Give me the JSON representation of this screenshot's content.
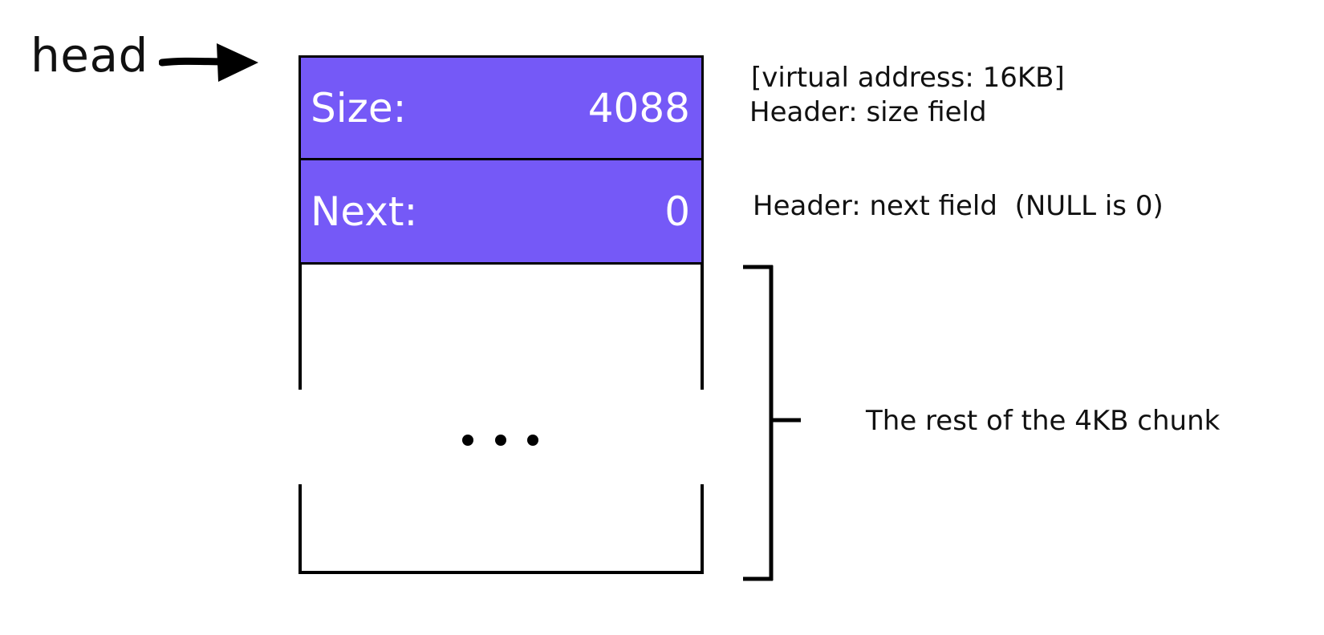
{
  "head": {
    "label": "head"
  },
  "header": {
    "fill_color": "#7559F7",
    "size_field": {
      "label": "Size:",
      "value": "4088"
    },
    "next_field": {
      "label": "Next:",
      "value": "0"
    }
  },
  "body": {
    "ellipsis": "..."
  },
  "annotations": {
    "virtual_address": "[virtual address: 16KB]",
    "size_note": "Header: size field",
    "next_note": "Header: next field  (NULL is 0)",
    "rest_note": "The rest of the 4KB chunk"
  }
}
